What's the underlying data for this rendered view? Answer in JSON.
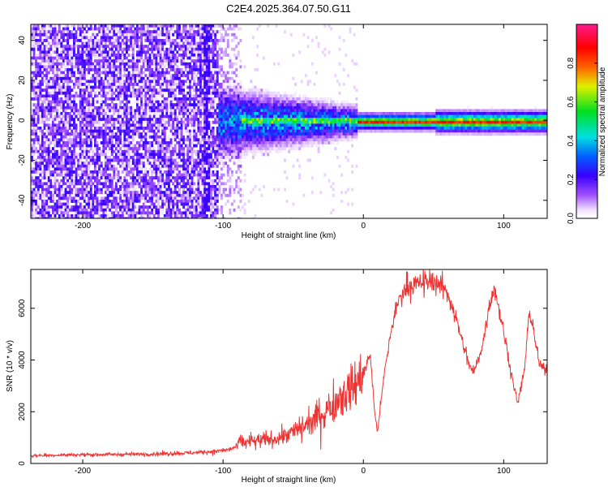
{
  "title": "C2E4.2025.364.07.50.G11",
  "chart_data": [
    {
      "type": "heatmap",
      "xlabel": "Height of straight line (km)",
      "ylabel": "Frequency (Hz)",
      "xlim": [
        -237,
        131
      ],
      "ylim": [
        -49,
        48
      ],
      "xticks": [
        -200,
        -100,
        0,
        100
      ],
      "xtick_labels": [
        "-200",
        "-100",
        "0",
        "100"
      ],
      "yticks": [
        -40,
        -20,
        0,
        20,
        40
      ],
      "ytick_labels": [
        "-40",
        "-20",
        "0",
        "20",
        "40"
      ],
      "colorbar": {
        "label": "Normalized spectral amplitude",
        "range": [
          0,
          1
        ],
        "ticks": [
          0,
          0.2,
          0.4,
          0.6,
          0.8
        ],
        "tick_labels": [
          "0.0",
          "0.2",
          "0.4",
          "0.6",
          "0.8"
        ],
        "colormap": "rainbow (white-violet-blue-cyan-green-yellow-red-pink)"
      }
    },
    {
      "type": "line",
      "xlabel": "Height of straight line (km)",
      "ylabel": "SNR (10 * v/v)",
      "xlim": [
        -237,
        131
      ],
      "ylim": [
        0,
        7500
      ],
      "xticks": [
        -200,
        -100,
        0,
        100
      ],
      "xtick_labels": [
        "-200",
        "-100",
        "0",
        "100"
      ],
      "yticks": [
        0,
        2000,
        4000,
        6000
      ],
      "ytick_labels": [
        "0",
        "2000",
        "4000",
        "6000"
      ],
      "series": [
        {
          "name": "SNR",
          "color": "#ee3333",
          "x": [
            -237,
            -220,
            -200,
            -180,
            -160,
            -140,
            -120,
            -110,
            -100,
            -95,
            -90,
            -88,
            -85,
            -80,
            -70,
            -60,
            -50,
            -40,
            -30,
            -20,
            -15,
            -10,
            -5,
            0,
            5,
            8,
            10,
            15,
            20,
            25,
            30,
            35,
            40,
            45,
            50,
            55,
            60,
            65,
            70,
            75,
            78,
            80,
            85,
            90,
            93,
            95,
            100,
            105,
            110,
            115,
            118,
            120,
            125,
            131
          ],
          "y": [
            300,
            320,
            340,
            350,
            360,
            380,
            420,
            450,
            500,
            550,
            650,
            900,
            800,
            850,
            900,
            1000,
            1200,
            1500,
            1900,
            2300,
            2700,
            2800,
            3000,
            3500,
            4200,
            2000,
            1200,
            3500,
            5200,
            6300,
            6800,
            6900,
            6950,
            7000,
            7050,
            6900,
            6600,
            5800,
            4800,
            3900,
            3500,
            3700,
            4600,
            6200,
            6800,
            6400,
            5100,
            3600,
            2300,
            3700,
            5700,
            5600,
            3900,
            3500
          ]
        }
      ]
    }
  ]
}
